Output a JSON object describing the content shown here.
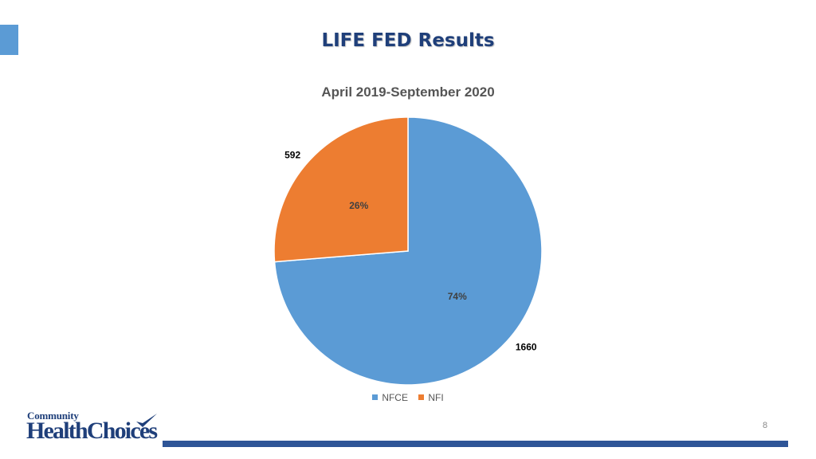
{
  "slide": {
    "title": "LIFE FED Results",
    "page_number": "8",
    "accent_color": "#5b9bd5",
    "footer_bar_color": "#2e5597"
  },
  "logo": {
    "top_text": "Community",
    "main_text": "HealthChoices",
    "brand_color": "#1f3f7a"
  },
  "chart_data": {
    "type": "pie",
    "title": "April 2019-September 2020",
    "categories": [
      "NFCE",
      "NFI"
    ],
    "values": [
      1660,
      592
    ],
    "percent_labels": [
      "74%",
      "26%"
    ],
    "colors": [
      "#5b9bd5",
      "#ed7d31"
    ],
    "legend_position": "bottom"
  }
}
